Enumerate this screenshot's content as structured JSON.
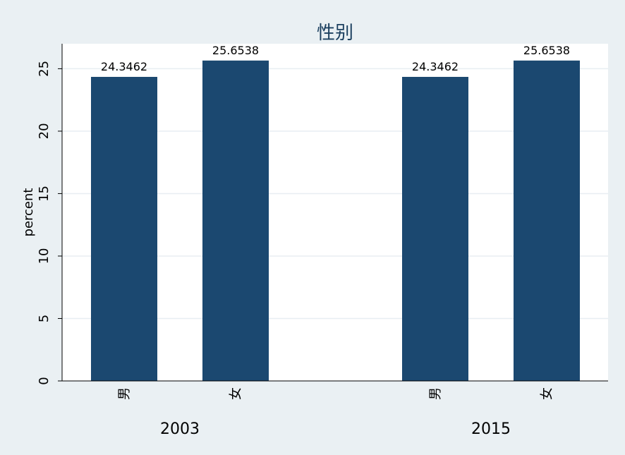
{
  "chart_data": {
    "type": "bar",
    "title": "性别",
    "ylabel": "percent",
    "xlabel": "",
    "ylim": [
      0,
      27
    ],
    "yticks": [
      0,
      5,
      10,
      15,
      20,
      25
    ],
    "grid": true,
    "bar_color": "#1b4870",
    "groups": [
      {
        "label": "2003",
        "categories": [
          "男",
          "女"
        ],
        "values": [
          24.3462,
          25.6538
        ]
      },
      {
        "label": "2015",
        "categories": [
          "男",
          "女"
        ],
        "values": [
          24.3462,
          25.6538
        ]
      }
    ]
  }
}
